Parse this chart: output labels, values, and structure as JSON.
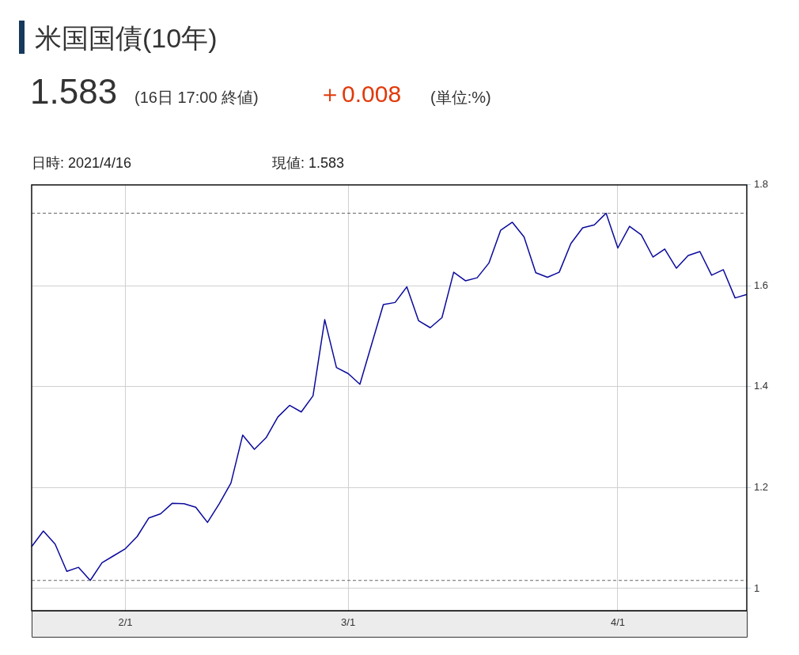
{
  "chart_data": {
    "type": "line",
    "title": "米国国債(10年)",
    "annotations": [
      "1.583",
      "(16日 17:00 終値)",
      "＋0.008",
      "(単位:%)",
      "日時: 2021/4/16",
      "現値: 1.583"
    ],
    "categories": [
      null,
      null,
      null,
      null,
      null,
      null,
      null,
      null,
      "2/1",
      null,
      null,
      null,
      null,
      null,
      null,
      null,
      null,
      null,
      null,
      null,
      null,
      null,
      null,
      null,
      null,
      null,
      null,
      "3/1",
      null,
      null,
      null,
      null,
      null,
      null,
      null,
      null,
      null,
      null,
      null,
      null,
      null,
      null,
      null,
      null,
      null,
      null,
      null,
      null,
      null,
      null,
      "4/1",
      null,
      null,
      null,
      null,
      null,
      null,
      null,
      null,
      null,
      null,
      null
    ],
    "series": [
      {
        "color": "#0a0a9c",
        "values": [
          1.083,
          1.114,
          1.088,
          1.034,
          1.042,
          1.016,
          1.051,
          1.065,
          1.079,
          1.103,
          1.14,
          1.148,
          1.169,
          1.168,
          1.161,
          1.131,
          1.168,
          1.209,
          1.304,
          1.276,
          1.299,
          1.34,
          1.363,
          1.35,
          1.382,
          1.533,
          1.438,
          1.426,
          1.405,
          1.484,
          1.563,
          1.567,
          1.598,
          1.531,
          1.517,
          1.537,
          1.627,
          1.61,
          1.616,
          1.645,
          1.71,
          1.726,
          1.697,
          1.626,
          1.617,
          1.627,
          1.684,
          1.715,
          1.721,
          1.744,
          1.675,
          1.718,
          1.701,
          1.657,
          1.673,
          1.635,
          1.66,
          1.668,
          1.621,
          1.632,
          1.576,
          1.583
        ]
      }
    ],
    "ylim": [
      0.956,
      1.8
    ],
    "yticks": [
      1,
      1.2,
      1.4,
      1.6,
      1.8
    ],
    "ref_lines": [
      {
        "axis": "y",
        "value": 1.744,
        "color": "#666666",
        "line_style": "dashed"
      },
      {
        "axis": "y",
        "value": 1.016,
        "color": "#666666",
        "line_style": "dashed"
      }
    ],
    "grid": true,
    "legend": false,
    "marker": "none",
    "line_style": "solid"
  }
}
